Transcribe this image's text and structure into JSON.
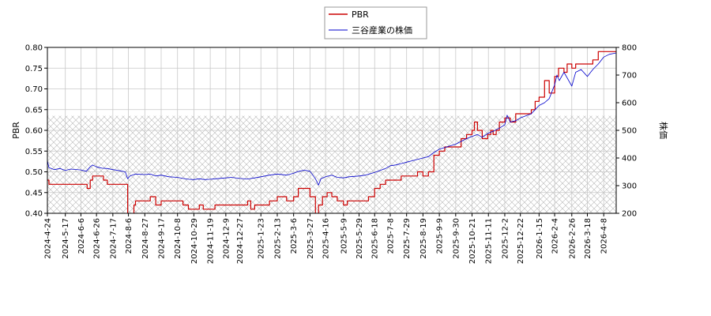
{
  "chart_data": {
    "type": "line",
    "legend": {
      "placement": "top-center"
    },
    "grid": true,
    "hatched_band": {
      "y_left_from": 0.4,
      "y_left_to": 0.635
    },
    "x_axis": {
      "ticks": [
        "2024-4-24",
        "2024-5-17",
        "2024-6-6",
        "2024-6-26",
        "2024-7-17",
        "2024-8-6",
        "2024-8-27",
        "2024-9-17",
        "2024-10-8",
        "2024-10-29",
        "2024-11-19",
        "2024-12-9",
        "2024-12-27",
        "2025-1-23",
        "2025-2-13",
        "2025-3-6",
        "2025-3-27",
        "2025-4-16",
        "2025-5-9",
        "2025-5-29",
        "2025-6-18",
        "2025-7-8",
        "2025-7-29",
        "2025-8-19",
        "2025-9-9",
        "2025-9-30",
        "2025-10-21",
        "2025-11-11",
        "2025-12-2",
        "2025-12-22",
        "2026-1-15",
        "2026-2-4",
        "2026-2-26",
        "2026-3-18",
        "2026-4-8"
      ],
      "range": [
        "2024-4-24",
        "2026-4-24"
      ]
    },
    "y_left": {
      "label": "PBR",
      "ylim": [
        0.4,
        0.8
      ],
      "ticks": [
        "0.40",
        "0.45",
        "0.50",
        "0.55",
        "0.60",
        "0.65",
        "0.70",
        "0.75",
        "0.80"
      ]
    },
    "y_right": {
      "label": "株価",
      "ylim": [
        200,
        800
      ],
      "ticks": [
        "200",
        "300",
        "400",
        "500",
        "600",
        "700",
        "800"
      ]
    },
    "series": [
      {
        "name": "PBR",
        "axis": "left",
        "color": "#cc0000",
        "points": [
          [
            "2024-4-24",
            0.48
          ],
          [
            "2024-4-26",
            0.47
          ],
          [
            "2024-5-17",
            0.47
          ],
          [
            "2024-6-6",
            0.47
          ],
          [
            "2024-6-14",
            0.46
          ],
          [
            "2024-6-18",
            0.48
          ],
          [
            "2024-6-21",
            0.49
          ],
          [
            "2024-6-28",
            0.49
          ],
          [
            "2024-7-5",
            0.48
          ],
          [
            "2024-7-10",
            0.47
          ],
          [
            "2024-7-17",
            0.47
          ],
          [
            "2024-8-2",
            0.47
          ],
          [
            "2024-8-5",
            0.38
          ],
          [
            "2024-8-13",
            0.42
          ],
          [
            "2024-8-15",
            0.43
          ],
          [
            "2024-8-27",
            0.43
          ],
          [
            "2024-9-3",
            0.44
          ],
          [
            "2024-9-10",
            0.42
          ],
          [
            "2024-9-17",
            0.43
          ],
          [
            "2024-10-8",
            0.43
          ],
          [
            "2024-10-15",
            0.42
          ],
          [
            "2024-10-22",
            0.41
          ],
          [
            "2024-10-29",
            0.41
          ],
          [
            "2024-11-5",
            0.42
          ],
          [
            "2024-11-10",
            0.41
          ],
          [
            "2024-11-19",
            0.41
          ],
          [
            "2024-11-25",
            0.42
          ],
          [
            "2024-12-9",
            0.42
          ],
          [
            "2024-12-20",
            0.42
          ],
          [
            "2024-12-27",
            0.42
          ],
          [
            "2025-1-6",
            0.43
          ],
          [
            "2025-1-10",
            0.41
          ],
          [
            "2025-1-15",
            0.42
          ],
          [
            "2025-1-23",
            0.42
          ],
          [
            "2025-2-3",
            0.43
          ],
          [
            "2025-2-13",
            0.44
          ],
          [
            "2025-2-25",
            0.43
          ],
          [
            "2025-3-6",
            0.44
          ],
          [
            "2025-3-12",
            0.46
          ],
          [
            "2025-3-24",
            0.46
          ],
          [
            "2025-3-27",
            0.44
          ],
          [
            "2025-4-3",
            0.39
          ],
          [
            "2025-4-7",
            0.42
          ],
          [
            "2025-4-12",
            0.44
          ],
          [
            "2025-4-18",
            0.45
          ],
          [
            "2025-4-24",
            0.44
          ],
          [
            "2025-5-1",
            0.43
          ],
          [
            "2025-5-9",
            0.42
          ],
          [
            "2025-5-14",
            0.43
          ],
          [
            "2025-5-29",
            0.43
          ],
          [
            "2025-6-10",
            0.44
          ],
          [
            "2025-6-18",
            0.46
          ],
          [
            "2025-6-25",
            0.47
          ],
          [
            "2025-7-2",
            0.48
          ],
          [
            "2025-7-15",
            0.48
          ],
          [
            "2025-7-22",
            0.49
          ],
          [
            "2025-7-29",
            0.49
          ],
          [
            "2025-8-12",
            0.5
          ],
          [
            "2025-8-19",
            0.49
          ],
          [
            "2025-8-26",
            0.5
          ],
          [
            "2025-9-2",
            0.54
          ],
          [
            "2025-9-9",
            0.55
          ],
          [
            "2025-9-16",
            0.56
          ],
          [
            "2025-9-30",
            0.56
          ],
          [
            "2025-10-7",
            0.58
          ],
          [
            "2025-10-14",
            0.59
          ],
          [
            "2025-10-21",
            0.6
          ],
          [
            "2025-10-24",
            0.62
          ],
          [
            "2025-10-28",
            0.6
          ],
          [
            "2025-11-3",
            0.58
          ],
          [
            "2025-11-10",
            0.59
          ],
          [
            "2025-11-14",
            0.6
          ],
          [
            "2025-11-17",
            0.59
          ],
          [
            "2025-11-21",
            0.6
          ],
          [
            "2025-11-25",
            0.62
          ],
          [
            "2025-12-2",
            0.63
          ],
          [
            "2025-12-9",
            0.62
          ],
          [
            "2025-12-16",
            0.64
          ],
          [
            "2025-12-22",
            0.64
          ],
          [
            "2026-1-5",
            0.65
          ],
          [
            "2026-1-10",
            0.67
          ],
          [
            "2026-1-15",
            0.68
          ],
          [
            "2026-1-22",
            0.72
          ],
          [
            "2026-1-28",
            0.69
          ],
          [
            "2026-2-4",
            0.73
          ],
          [
            "2026-2-9",
            0.75
          ],
          [
            "2026-2-16",
            0.74
          ],
          [
            "2026-2-20",
            0.76
          ],
          [
            "2026-2-26",
            0.75
          ],
          [
            "2026-3-3",
            0.76
          ],
          [
            "2026-3-18",
            0.76
          ],
          [
            "2026-3-25",
            0.77
          ],
          [
            "2026-4-1",
            0.79
          ],
          [
            "2026-4-8",
            0.79
          ],
          [
            "2026-4-24",
            0.79
          ]
        ]
      },
      {
        "name": "三谷産業の株価",
        "axis": "right",
        "color": "#0000cc",
        "points": [
          [
            "2024-4-24",
            390
          ],
          [
            "2024-4-26",
            365
          ],
          [
            "2024-5-3",
            358
          ],
          [
            "2024-5-10",
            362
          ],
          [
            "2024-5-17",
            355
          ],
          [
            "2024-5-24",
            360
          ],
          [
            "2024-6-6",
            357
          ],
          [
            "2024-6-13",
            352
          ],
          [
            "2024-6-18",
            368
          ],
          [
            "2024-6-21",
            375
          ],
          [
            "2024-6-26",
            368
          ],
          [
            "2024-7-3",
            363
          ],
          [
            "2024-7-10",
            362
          ],
          [
            "2024-7-17",
            358
          ],
          [
            "2024-7-24",
            355
          ],
          [
            "2024-8-2",
            350
          ],
          [
            "2024-8-5",
            325
          ],
          [
            "2024-8-8",
            335
          ],
          [
            "2024-8-15",
            342
          ],
          [
            "2024-8-27",
            340
          ],
          [
            "2024-9-3",
            342
          ],
          [
            "2024-9-10",
            335
          ],
          [
            "2024-9-17",
            338
          ],
          [
            "2024-9-27",
            332
          ],
          [
            "2024-10-8",
            330
          ],
          [
            "2024-10-15",
            326
          ],
          [
            "2024-10-22",
            323
          ],
          [
            "2024-10-29",
            322
          ],
          [
            "2024-11-5",
            325
          ],
          [
            "2024-11-12",
            322
          ],
          [
            "2024-11-19",
            323
          ],
          [
            "2024-11-26",
            325
          ],
          [
            "2024-12-9",
            328
          ],
          [
            "2024-12-16",
            330
          ],
          [
            "2024-12-27",
            326
          ],
          [
            "2025-1-6",
            324
          ],
          [
            "2025-1-15",
            328
          ],
          [
            "2025-1-23",
            332
          ],
          [
            "2025-2-3",
            338
          ],
          [
            "2025-2-13",
            342
          ],
          [
            "2025-2-25",
            338
          ],
          [
            "2025-3-6",
            345
          ],
          [
            "2025-3-13",
            352
          ],
          [
            "2025-3-20",
            356
          ],
          [
            "2025-3-27",
            352
          ],
          [
            "2025-4-3",
            325
          ],
          [
            "2025-4-7",
            302
          ],
          [
            "2025-4-10",
            325
          ],
          [
            "2025-4-16",
            332
          ],
          [
            "2025-4-24",
            338
          ],
          [
            "2025-5-1",
            330
          ],
          [
            "2025-5-9",
            328
          ],
          [
            "2025-5-16",
            332
          ],
          [
            "2025-5-29",
            335
          ],
          [
            "2025-6-6",
            338
          ],
          [
            "2025-6-18",
            348
          ],
          [
            "2025-6-25",
            355
          ],
          [
            "2025-7-2",
            362
          ],
          [
            "2025-7-8",
            372
          ],
          [
            "2025-7-15",
            375
          ],
          [
            "2025-7-29",
            385
          ],
          [
            "2025-8-5",
            390
          ],
          [
            "2025-8-19",
            400
          ],
          [
            "2025-8-26",
            405
          ],
          [
            "2025-9-2",
            420
          ],
          [
            "2025-9-9",
            432
          ],
          [
            "2025-9-16",
            438
          ],
          [
            "2025-9-30",
            450
          ],
          [
            "2025-10-7",
            460
          ],
          [
            "2025-10-14",
            470
          ],
          [
            "2025-10-21",
            478
          ],
          [
            "2025-10-28",
            485
          ],
          [
            "2025-11-3",
            475
          ],
          [
            "2025-11-11",
            490
          ],
          [
            "2025-11-18",
            498
          ],
          [
            "2025-11-25",
            508
          ],
          [
            "2025-12-2",
            520
          ],
          [
            "2025-12-5",
            555
          ],
          [
            "2025-12-9",
            530
          ],
          [
            "2025-12-16",
            535
          ],
          [
            "2025-12-22",
            545
          ],
          [
            "2026-1-5",
            560
          ],
          [
            "2026-1-10",
            575
          ],
          [
            "2026-1-15",
            590
          ],
          [
            "2026-1-22",
            600
          ],
          [
            "2026-1-28",
            615
          ],
          [
            "2026-2-4",
            665
          ],
          [
            "2026-2-7",
            700
          ],
          [
            "2026-2-10",
            680
          ],
          [
            "2026-2-16",
            710
          ],
          [
            "2026-2-20",
            690
          ],
          [
            "2026-2-26",
            660
          ],
          [
            "2026-3-3",
            710
          ],
          [
            "2026-3-10",
            720
          ],
          [
            "2026-3-18",
            695
          ],
          [
            "2026-3-25",
            720
          ],
          [
            "2026-4-1",
            740
          ],
          [
            "2026-4-8",
            765
          ],
          [
            "2026-4-15",
            775
          ],
          [
            "2026-4-24",
            780
          ]
        ]
      }
    ]
  }
}
